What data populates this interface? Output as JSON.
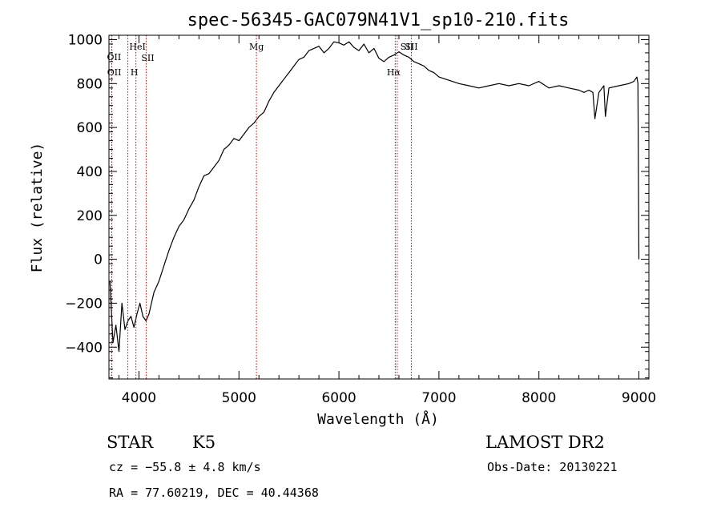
{
  "chart_data": {
    "type": "line",
    "title": "spec-56345-GAC079N41V1_sp10-210.fits",
    "xlabel": "Wavelength (Å)",
    "ylabel": "Flux (relative)",
    "xlim": [
      3700,
      9100
    ],
    "ylim": [
      -545,
      1020
    ],
    "xticks": [
      4000,
      5000,
      6000,
      7000,
      8000,
      9000
    ],
    "yticks": [
      -400,
      -200,
      0,
      200,
      400,
      600,
      800,
      1000
    ],
    "grid": false,
    "series": [
      {
        "color": "#000000",
        "x": [
          3710,
          3740,
          3770,
          3800,
          3830,
          3860,
          3890,
          3920,
          3950,
          3980,
          4010,
          4040,
          4070,
          4100,
          4150,
          4200,
          4250,
          4300,
          4350,
          4400,
          4450,
          4500,
          4550,
          4600,
          4650,
          4700,
          4750,
          4800,
          4850,
          4900,
          4950,
          5000,
          5050,
          5100,
          5150,
          5200,
          5250,
          5300,
          5350,
          5400,
          5450,
          5500,
          5550,
          5600,
          5650,
          5700,
          5750,
          5800,
          5850,
          5900,
          5950,
          6000,
          6050,
          6100,
          6150,
          6200,
          6250,
          6300,
          6350,
          6400,
          6450,
          6500,
          6550,
          6600,
          6650,
          6700,
          6750,
          6800,
          6850,
          6900,
          6950,
          7000,
          7100,
          7200,
          7300,
          7400,
          7500,
          7600,
          7700,
          7800,
          7900,
          8000,
          8100,
          8200,
          8300,
          8400,
          8450,
          8500,
          8540,
          8560,
          8600,
          8650,
          8665,
          8700,
          8800,
          8900,
          8950,
          8980,
          8990,
          9000
        ],
        "y": [
          -100,
          -380,
          -300,
          -420,
          -200,
          -320,
          -280,
          -260,
          -310,
          -250,
          -200,
          -260,
          -280,
          -250,
          -150,
          -100,
          -30,
          40,
          100,
          150,
          180,
          230,
          270,
          330,
          380,
          390,
          420,
          450,
          500,
          520,
          550,
          540,
          570,
          600,
          620,
          650,
          670,
          720,
          760,
          790,
          820,
          850,
          880,
          910,
          920,
          950,
          960,
          970,
          940,
          960,
          990,
          985,
          975,
          990,
          965,
          950,
          980,
          940,
          960,
          915,
          900,
          920,
          930,
          945,
          930,
          920,
          900,
          890,
          880,
          860,
          850,
          830,
          815,
          800,
          790,
          780,
          790,
          800,
          790,
          800,
          790,
          810,
          780,
          790,
          780,
          770,
          760,
          770,
          760,
          640,
          760,
          790,
          650,
          780,
          790,
          800,
          810,
          830,
          800,
          0
        ]
      }
    ],
    "spectral_lines": [
      {
        "label": "OII",
        "x": 3727
      },
      {
        "label": "OII",
        "x": 3729
      },
      {
        "label": "HeI",
        "x": 3889
      },
      {
        "label": "H",
        "x": 3970
      },
      {
        "label": "SII",
        "x": 4072
      },
      {
        "label": "Mg",
        "x": 5175
      },
      {
        "label": "Hα",
        "x": 6563
      },
      {
        "label": "SII",
        "x": 6583
      },
      {
        "label": "SII",
        "x": 6724
      }
    ],
    "line_color": "#cc0000"
  },
  "info": {
    "object_class": "STAR",
    "subclass": "K5",
    "velocity": "cz = −55.8 ± 4.8 km/s",
    "coords": "RA =  77.60219, DEC =  40.44368",
    "survey": "LAMOST DR2",
    "obs_date": "Obs-Date: 20130221"
  }
}
